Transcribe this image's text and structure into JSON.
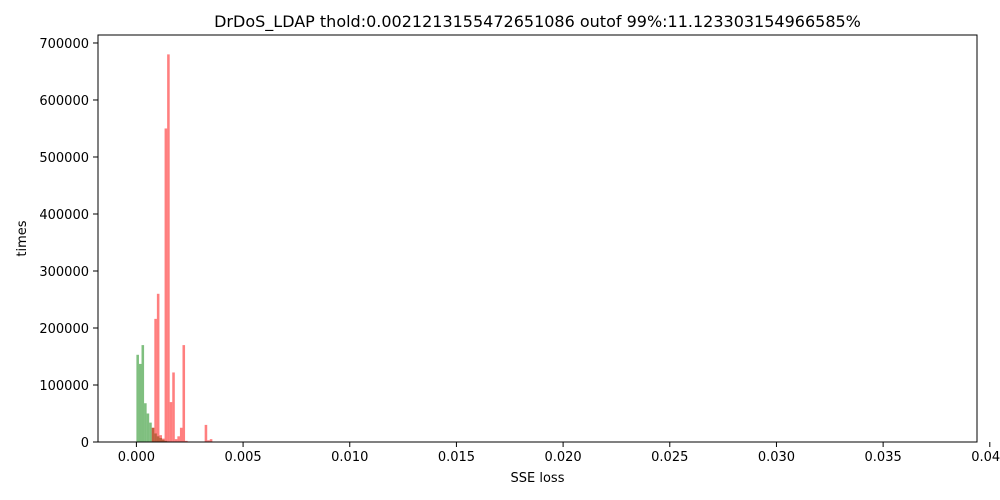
{
  "chart_data": {
    "type": "histogram",
    "title": "DrDoS_LDAP thold:0.0021213155472651086 outof 99%:11.123303154966585%",
    "xlabel": "SSE loss",
    "ylabel": "times",
    "xlim": [
      -0.0018,
      0.0394
    ],
    "ylim": [
      0,
      714000
    ],
    "xticks": [
      0.0,
      0.005,
      0.01,
      0.015,
      0.02,
      0.025,
      0.03,
      0.035,
      0.04
    ],
    "xtick_labels": [
      "0.000",
      "0.005",
      "0.010",
      "0.015",
      "0.020",
      "0.025",
      "0.030",
      "0.035",
      "0.040"
    ],
    "yticks": [
      0,
      100000,
      200000,
      300000,
      400000,
      500000,
      600000,
      700000
    ],
    "ytick_labels": [
      "0",
      "100000",
      "200000",
      "300000",
      "400000",
      "500000",
      "600000",
      "700000"
    ],
    "grid": false,
    "series": [
      {
        "color": "#008000",
        "alpha": 0.5,
        "bins": [
          {
            "x0": 0.0,
            "x1": 0.00012,
            "count": 153000
          },
          {
            "x0": 0.00012,
            "x1": 0.00024,
            "count": 137000
          },
          {
            "x0": 0.00024,
            "x1": 0.00036,
            "count": 170000
          },
          {
            "x0": 0.00036,
            "x1": 0.00048,
            "count": 68000
          },
          {
            "x0": 0.00048,
            "x1": 0.0006,
            "count": 50000
          },
          {
            "x0": 0.0006,
            "x1": 0.00072,
            "count": 34000
          },
          {
            "x0": 0.00072,
            "x1": 0.00084,
            "count": 25000
          },
          {
            "x0": 0.00084,
            "x1": 0.00096,
            "count": 15000
          },
          {
            "x0": 0.00096,
            "x1": 0.00108,
            "count": 10000
          },
          {
            "x0": 0.00108,
            "x1": 0.0012,
            "count": 7000
          },
          {
            "x0": 0.0012,
            "x1": 0.00132,
            "count": 4000
          },
          {
            "x0": 0.00132,
            "x1": 0.00144,
            "count": 2000
          },
          {
            "x0": 0.00144,
            "x1": 0.00156,
            "count": 1000
          }
        ]
      },
      {
        "color": "#ff0000",
        "alpha": 0.5,
        "bins": [
          {
            "x0": 0.00072,
            "x1": 0.00084,
            "count": 25000
          },
          {
            "x0": 0.00084,
            "x1": 0.00096,
            "count": 216000
          },
          {
            "x0": 0.00096,
            "x1": 0.00108,
            "count": 260000
          },
          {
            "x0": 0.00108,
            "x1": 0.0012,
            "count": 12000
          },
          {
            "x0": 0.0012,
            "x1": 0.00132,
            "count": 6000
          },
          {
            "x0": 0.00132,
            "x1": 0.00144,
            "count": 550000
          },
          {
            "x0": 0.00144,
            "x1": 0.00156,
            "count": 680000
          },
          {
            "x0": 0.00156,
            "x1": 0.00168,
            "count": 70000
          },
          {
            "x0": 0.00168,
            "x1": 0.0018,
            "count": 122000
          },
          {
            "x0": 0.0018,
            "x1": 0.00192,
            "count": 5000
          },
          {
            "x0": 0.00192,
            "x1": 0.00204,
            "count": 10000
          },
          {
            "x0": 0.00204,
            "x1": 0.00216,
            "count": 25000
          },
          {
            "x0": 0.00216,
            "x1": 0.00228,
            "count": 170000
          },
          {
            "x0": 0.00228,
            "x1": 0.0024,
            "count": 2000
          },
          {
            "x0": 0.0032,
            "x1": 0.00332,
            "count": 30000
          },
          {
            "x0": 0.00332,
            "x1": 0.00344,
            "count": 3000
          },
          {
            "x0": 0.00344,
            "x1": 0.00356,
            "count": 5000
          }
        ]
      }
    ]
  }
}
